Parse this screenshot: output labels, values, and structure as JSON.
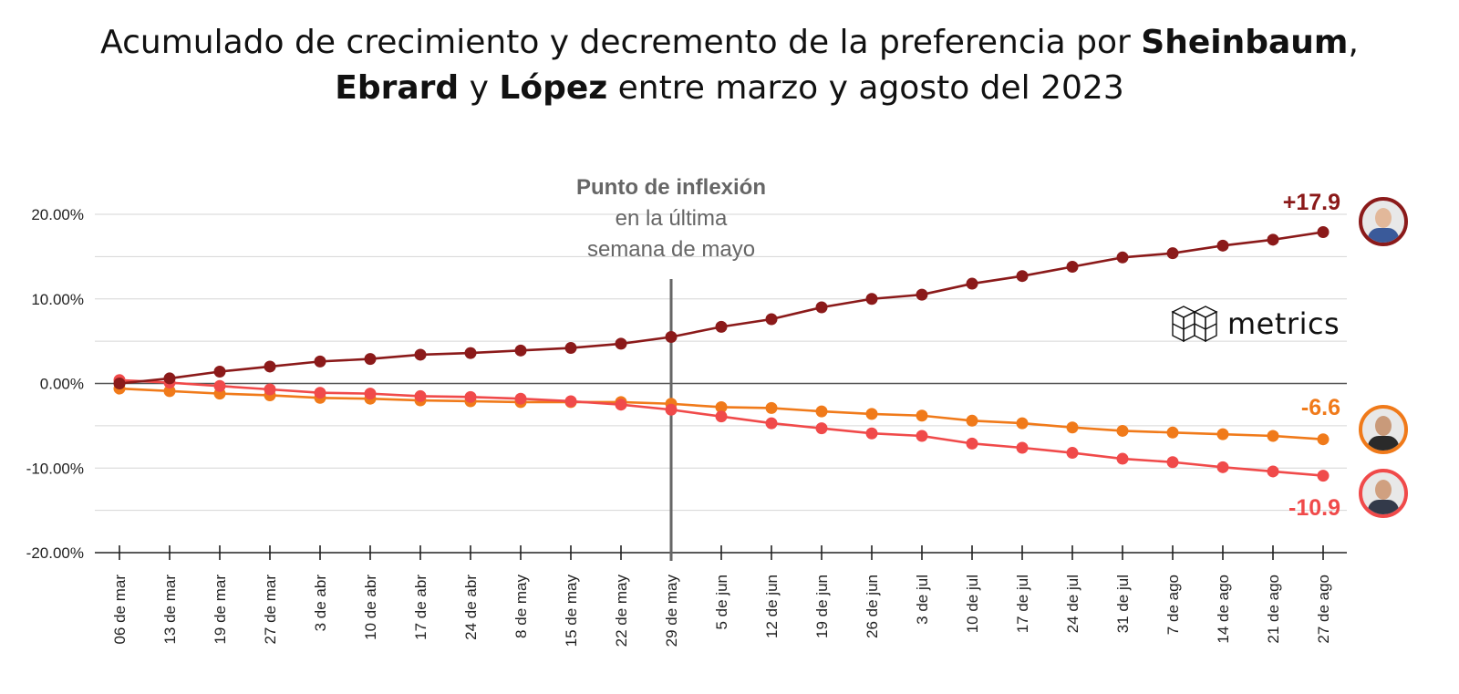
{
  "title": {
    "part1": "Acumulado de crecimiento y decremento de la preferencia por ",
    "bold1": "Sheinbaum",
    "part2": ",",
    "bold2": "Ebrard",
    "part3": " y ",
    "bold3": "López",
    "part4": " entre marzo y agosto del 2023"
  },
  "annotation": {
    "bold": "Punto de inflexión",
    "line2": "en la última",
    "line3": "semana de mayo"
  },
  "logo_text": "metrics",
  "colors": {
    "sheinbaum": "#8b1a1a",
    "lopez": "#f07a1a",
    "ebrard": "#f04a4a",
    "inflection": "#666666"
  },
  "chart_data": {
    "type": "line",
    "x": [
      "06 de mar",
      "13 de mar",
      "19 de mar",
      "27 de mar",
      "3 de abr",
      "10 de abr",
      "17 de abr",
      "24 de abr",
      "8 de may",
      "15 de may",
      "22 de may",
      "29 de may",
      "5 de jun",
      "12 de jun",
      "19 de jun",
      "26 de jun",
      "3 de jul",
      "10 de jul",
      "17 de jul",
      "24 de jul",
      "31 de jul",
      "7 de ago",
      "14 de ago",
      "21 de ago",
      "27 de ago"
    ],
    "y_ticks": [
      "20.00%",
      "10.00%",
      "0.00%",
      "-10.00%",
      "-20.00%"
    ],
    "ylim": [
      -20,
      20
    ],
    "inflection_category": "29 de may",
    "series": [
      {
        "key": "sheinbaum",
        "values": [
          0.0,
          0.6,
          1.4,
          2.0,
          2.6,
          2.9,
          3.4,
          3.6,
          3.9,
          4.2,
          4.7,
          5.5,
          6.7,
          7.6,
          9.0,
          10.0,
          10.5,
          11.8,
          12.7,
          13.8,
          14.9,
          15.4,
          16.3,
          17.0,
          17.9
        ],
        "end_label": "+17.9"
      },
      {
        "key": "lopez",
        "values": [
          -0.6,
          -0.9,
          -1.2,
          -1.4,
          -1.7,
          -1.8,
          -2.0,
          -2.1,
          -2.2,
          -2.2,
          -2.2,
          -2.4,
          -2.8,
          -2.9,
          -3.3,
          -3.6,
          -3.8,
          -4.4,
          -4.7,
          -5.2,
          -5.6,
          -5.8,
          -6.0,
          -6.2,
          -6.6
        ],
        "end_label": "-6.6"
      },
      {
        "key": "ebrard",
        "values": [
          0.4,
          0.1,
          -0.3,
          -0.7,
          -1.1,
          -1.2,
          -1.5,
          -1.6,
          -1.8,
          -2.1,
          -2.5,
          -3.1,
          -3.9,
          -4.7,
          -5.3,
          -5.9,
          -6.2,
          -7.1,
          -7.6,
          -8.2,
          -8.9,
          -9.3,
          -9.9,
          -10.4,
          -10.9
        ],
        "end_label": "-10.9"
      }
    ],
    "grid": true
  }
}
